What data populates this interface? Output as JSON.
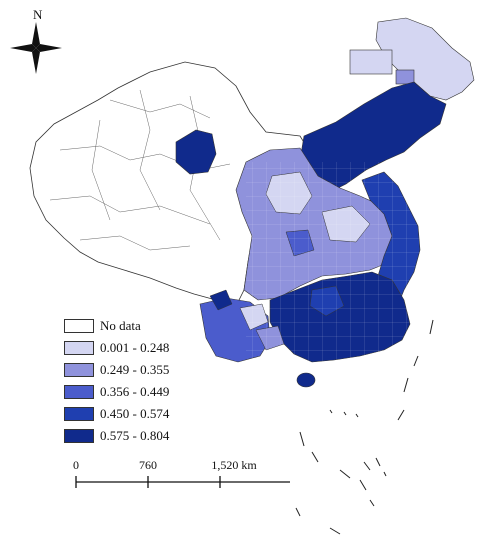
{
  "north": {
    "label": "N",
    "icon": "compass-rose-icon"
  },
  "legend": {
    "items": [
      {
        "label": "No data",
        "color": "#ffffff"
      },
      {
        "label": "0.001 - 0.248",
        "color": "#d4d6f2"
      },
      {
        "label": "0.249 - 0.355",
        "color": "#8f92dc"
      },
      {
        "label": "0.356 - 0.449",
        "color": "#4b5ccc"
      },
      {
        "label": "0.450 - 0.574",
        "color": "#1f3fb0"
      },
      {
        "label": "0.575 - 0.804",
        "color": "#102a8c"
      }
    ]
  },
  "scale_bar": {
    "ticks": [
      "0",
      "760",
      "1,520 km"
    ]
  }
}
